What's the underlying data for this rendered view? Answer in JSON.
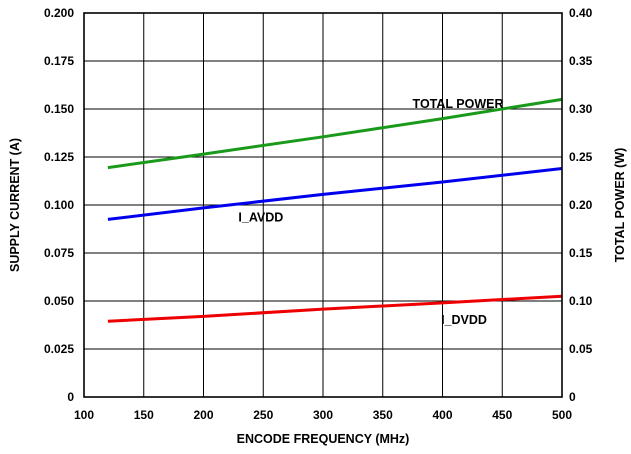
{
  "chart_data": {
    "type": "line",
    "xlabel": "ENCODE FREQUENCY (MHz)",
    "ylabel_left": "SUPPLY CURRENT (A)",
    "ylabel_right": "TOTAL POWER (W)",
    "xlim": [
      100,
      500
    ],
    "ylim_left": [
      0,
      0.2
    ],
    "ylim_right": [
      0,
      0.4
    ],
    "x_ticks": [
      "100",
      "150",
      "200",
      "250",
      "300",
      "350",
      "400",
      "450",
      "500"
    ],
    "y_ticks_left": [
      "0",
      "0.025",
      "0.050",
      "0.075",
      "0.100",
      "0.125",
      "0.150",
      "0.175",
      "0.200"
    ],
    "y_ticks_right": [
      "0",
      "0.05",
      "0.10",
      "0.15",
      "0.20",
      "0.25",
      "0.30",
      "0.35",
      "0.40"
    ],
    "grid": true,
    "series": [
      {
        "name": "TOTAL POWER",
        "axis": "right",
        "color": "#1a9a1a",
        "x": [
          120,
          200,
          300,
          400,
          500
        ],
        "y": [
          0.239,
          0.253,
          0.271,
          0.29,
          0.31
        ]
      },
      {
        "name": "I_AVDD",
        "axis": "left",
        "color": "#0000ee",
        "x": [
          120,
          200,
          300,
          400,
          500
        ],
        "y": [
          0.0925,
          0.0985,
          0.1055,
          0.112,
          0.119
        ]
      },
      {
        "name": "I_DVDD",
        "axis": "left",
        "color": "#ee0000",
        "x": [
          120,
          200,
          300,
          400,
          500
        ],
        "y": [
          0.0395,
          0.042,
          0.0458,
          0.049,
          0.0525
        ]
      }
    ],
    "annotations": [
      {
        "text": "TOTAL POWER",
        "x": 413,
        "y": 0.1525
      },
      {
        "text": "I_AVDD",
        "x": 248,
        "y": 0.0935
      },
      {
        "text": "I_DVDD",
        "x": 418,
        "y": 0.04
      }
    ]
  }
}
